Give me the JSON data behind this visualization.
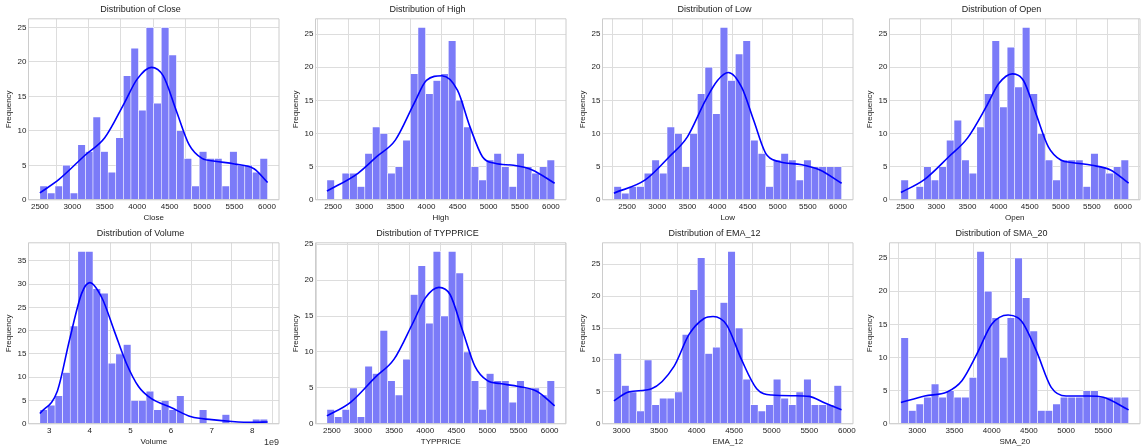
{
  "chart_data": [
    {
      "type": "histogram",
      "title": "Distribution of Close",
      "xlabel": "Close",
      "ylabel": "Frequency",
      "color": "#7b7bf8",
      "grid": true,
      "marker": "none",
      "bins": [
        2500,
        2617,
        2734,
        2851,
        2968,
        3085,
        3202,
        3319,
        3436,
        3553,
        3670,
        3787,
        3904,
        4021,
        4138,
        4255,
        4372,
        4489,
        4606,
        4723,
        4840,
        4957,
        5074,
        5191,
        5308,
        5425,
        5542,
        5659,
        5776,
        5893,
        6010
      ],
      "values": [
        2,
        1,
        2,
        5,
        1,
        8,
        7,
        12,
        7,
        4,
        9,
        18,
        22,
        13,
        25,
        14,
        25,
        21,
        10,
        6,
        2,
        7,
        6,
        6,
        2,
        7,
        5,
        5,
        4,
        6
      ],
      "series": [
        {
          "type": "line",
          "color": "#0000ff",
          "x": [
            2500,
            2800,
            3200,
            3500,
            3800,
            4000,
            4220,
            4400,
            4600,
            4800,
            5000,
            5200,
            5500,
            5800,
            6010
          ],
          "values": [
            1,
            3,
            6.5,
            9,
            14,
            17.5,
            19.2,
            18,
            13,
            8,
            6,
            5.6,
            5.2,
            4.5,
            2.5
          ]
        }
      ],
      "xlim": [
        2325,
        6186
      ],
      "ylim": [
        0,
        26.25
      ],
      "xticks": [
        2500,
        3000,
        3500,
        4000,
        4500,
        5000,
        5500,
        6000
      ],
      "yticks": [
        0,
        5,
        10,
        15,
        20,
        25
      ]
    },
    {
      "type": "histogram",
      "title": "Distribution of High",
      "xlabel": "High",
      "ylabel": "Frequency",
      "color": "#7b7bf8",
      "grid": true,
      "marker": "none",
      "bins": [
        2400,
        2522,
        2644,
        2766,
        2888,
        3010,
        3132,
        3254,
        3376,
        3498,
        3620,
        3742,
        3864,
        3986,
        4108,
        4230,
        4352,
        4474,
        4596,
        4718,
        4840,
        4962,
        5084,
        5206,
        5328,
        5450,
        5572,
        5694,
        5816,
        5938,
        6060
      ],
      "values": [
        3,
        0,
        4,
        4,
        2,
        7,
        11,
        10,
        4,
        5,
        9,
        19,
        26,
        16,
        18,
        19,
        24,
        15,
        11,
        5,
        3,
        6,
        7,
        5,
        2,
        7,
        5,
        4,
        5,
        6
      ],
      "series": [
        {
          "type": "line",
          "color": "#0000ff",
          "x": [
            2400,
            2900,
            3200,
            3500,
            3800,
            4000,
            4250,
            4500,
            4700,
            4900,
            5100,
            5400,
            5700,
            6060
          ],
          "values": [
            1.3,
            4,
            6.5,
            9,
            14.5,
            18,
            18.7,
            16.5,
            11,
            6.5,
            5.5,
            5.2,
            4.5,
            2.5
          ]
        }
      ],
      "xlim": [
        2217,
        6243
      ],
      "ylim": [
        0,
        27.3
      ],
      "xticks": [
        2500,
        3000,
        3500,
        4000,
        4500,
        5000,
        5500,
        6000
      ],
      "yticks": [
        0,
        5,
        10,
        15,
        20,
        25
      ]
    },
    {
      "type": "histogram",
      "title": "Distribution of Low",
      "xlabel": "Low",
      "ylabel": "Frequency",
      "color": "#7b7bf8",
      "grid": true,
      "marker": "none",
      "bins": [
        2280,
        2406,
        2532,
        2658,
        2784,
        2910,
        3036,
        3162,
        3288,
        3414,
        3540,
        3666,
        3792,
        3918,
        4044,
        4170,
        4296,
        4422,
        4548,
        4674,
        4800,
        4926,
        5052,
        5178,
        5304,
        5430,
        5556,
        5682,
        5808,
        5934,
        6060
      ],
      "values": [
        2,
        1,
        2,
        2,
        4,
        6,
        4,
        11,
        10,
        5,
        10,
        16,
        20,
        13,
        26,
        18,
        22,
        24,
        9,
        7,
        2,
        6,
        7,
        6,
        3,
        6,
        5,
        5,
        5,
        5
      ],
      "series": [
        {
          "type": "line",
          "color": "#0000ff",
          "x": [
            2280,
            2800,
            3200,
            3500,
            3800,
            4000,
            4180,
            4400,
            4600,
            4800,
            5000,
            5400,
            5700,
            6060
          ],
          "values": [
            1,
            3,
            6.5,
            9.5,
            15,
            18,
            19.2,
            17,
            12,
            7,
            5.8,
            5.3,
            4.5,
            2.5
          ]
        }
      ],
      "xlim": [
        2091,
        6249
      ],
      "ylim": [
        0,
        27.3
      ],
      "xticks": [
        2500,
        3000,
        3500,
        4000,
        4500,
        5000,
        5500,
        6000
      ],
      "yticks": [
        0,
        5,
        10,
        15,
        20,
        25
      ]
    },
    {
      "type": "histogram",
      "title": "Distribution of Open",
      "xlabel": "Open",
      "ylabel": "Frequency",
      "color": "#7b7bf8",
      "grid": true,
      "marker": "none",
      "bins": [
        2430,
        2552,
        2674,
        2796,
        2918,
        3040,
        3162,
        3284,
        3406,
        3528,
        3650,
        3772,
        3894,
        4016,
        4138,
        4260,
        4382,
        4504,
        4626,
        4748,
        4870,
        4992,
        5114,
        5236,
        5358,
        5480,
        5602,
        5724,
        5846,
        5968,
        6090
      ],
      "values": [
        3,
        0,
        2,
        5,
        3,
        5,
        9,
        12,
        6,
        4,
        11,
        16,
        24,
        14,
        23,
        17,
        26,
        16,
        10,
        6,
        3,
        6,
        6,
        6,
        2,
        7,
        5,
        4,
        5,
        6
      ],
      "series": [
        {
          "type": "line",
          "color": "#0000ff",
          "x": [
            2430,
            2800,
            3200,
            3500,
            3800,
            4000,
            4220,
            4400,
            4600,
            4800,
            5000,
            5200,
            5500,
            5800,
            6090
          ],
          "values": [
            1.1,
            3,
            6.5,
            9.3,
            14,
            17.5,
            19,
            18,
            13,
            8,
            6,
            5.6,
            5.2,
            4.5,
            2.5
          ]
        }
      ],
      "xlim": [
        2247,
        6273
      ],
      "ylim": [
        0,
        27.3
      ],
      "xticks": [
        2500,
        3000,
        3500,
        4000,
        4500,
        5000,
        5500,
        6000
      ],
      "yticks": [
        0,
        5,
        10,
        15,
        20,
        25
      ]
    },
    {
      "type": "histogram",
      "title": "Distribution of Volume",
      "xlabel": "Volume",
      "ylabel": "Frequency",
      "color": "#7b7bf8",
      "grid": true,
      "marker": "none",
      "annotations": [
        "1e9"
      ],
      "bins": [
        2.77,
        2.957,
        3.144,
        3.331,
        3.518,
        3.705,
        3.892,
        4.079,
        4.266,
        4.453,
        4.64,
        4.827,
        5.014,
        5.201,
        5.388,
        5.575,
        5.762,
        5.949,
        6.136,
        6.323,
        6.51,
        6.697,
        6.884,
        7.071,
        7.258,
        7.445,
        7.632,
        7.819,
        8.006,
        8.193,
        8.38
      ],
      "values": [
        3,
        4,
        6,
        11,
        21,
        37,
        37,
        29,
        28,
        13,
        15,
        17,
        5,
        5,
        7,
        3,
        5,
        3,
        6,
        0,
        0,
        3,
        0,
        0,
        2,
        0,
        0,
        0,
        1,
        1
      ],
      "series": [
        {
          "type": "line",
          "color": "#0000ff",
          "x": [
            2.77,
            3.2,
            3.5,
            3.8,
            4.0,
            4.3,
            4.6,
            4.9,
            5.2,
            5.5,
            6.0,
            6.5,
            7.0,
            7.5,
            8.0,
            8.38
          ],
          "values": [
            2.2,
            7,
            18,
            28,
            30.3,
            27,
            20,
            13,
            8,
            5.5,
            3.5,
            1.5,
            0.9,
            0.5,
            0.3,
            0.4
          ]
        }
      ],
      "xlim": [
        2.49,
        8.66
      ],
      "ylim": [
        0,
        38.85
      ],
      "xticks": [
        3,
        4,
        5,
        6,
        7,
        8
      ],
      "yticks": [
        0,
        5,
        10,
        15,
        20,
        25,
        30,
        35
      ]
    },
    {
      "type": "histogram",
      "title": "Distribution of TYPPRICE",
      "xlabel": "TYPPRICE",
      "ylabel": "Frequency",
      "color": "#7b7bf8",
      "grid": true,
      "marker": "none",
      "bins": [
        2420,
        2542,
        2664,
        2786,
        2908,
        3030,
        3152,
        3274,
        3396,
        3518,
        3640,
        3762,
        3884,
        4006,
        4128,
        4250,
        4372,
        4494,
        4616,
        4738,
        4860,
        4982,
        5104,
        5226,
        5348,
        5470,
        5592,
        5714,
        5836,
        5958,
        6080
      ],
      "values": [
        2,
        1,
        2,
        5,
        1,
        8,
        7,
        13,
        6,
        4,
        9,
        18,
        22,
        14,
        24,
        15,
        24,
        21,
        10,
        6,
        2,
        7,
        6,
        6,
        3,
        6,
        5,
        5,
        4,
        6
      ],
      "series": [
        {
          "type": "line",
          "color": "#0000ff",
          "x": [
            2420,
            2800,
            3200,
            3500,
            3800,
            4000,
            4220,
            4400,
            4600,
            4800,
            5000,
            5200,
            5500,
            5800,
            6080
          ],
          "values": [
            1.1,
            3,
            6.5,
            9,
            14,
            17.5,
            19,
            18,
            13,
            8,
            6,
            5.6,
            5.2,
            4.5,
            2.5
          ]
        }
      ],
      "xlim": [
        2237,
        6263
      ],
      "ylim": [
        0,
        25.2
      ],
      "xticks": [
        2500,
        3000,
        3500,
        4000,
        4500,
        5000,
        5500,
        6000
      ],
      "yticks": [
        0,
        5,
        10,
        15,
        20,
        25
      ]
    },
    {
      "type": "histogram",
      "title": "Distribution of EMA_12",
      "xlabel": "EMA_12",
      "ylabel": "Frequency",
      "color": "#7b7bf8",
      "grid": true,
      "marker": "none",
      "bins": [
        2900,
        3001,
        3102,
        3203,
        3304,
        3405,
        3506,
        3607,
        3708,
        3809,
        3910,
        4011,
        4112,
        4213,
        4314,
        4415,
        4516,
        4617,
        4718,
        4819,
        4920,
        5021,
        5122,
        5223,
        5324,
        5425,
        5526,
        5627,
        5728,
        5829,
        5930
      ],
      "values": [
        11,
        6,
        5,
        2,
        10,
        3,
        4,
        4,
        5,
        14,
        21,
        26,
        11,
        12,
        19,
        27,
        15,
        7,
        3,
        2,
        3,
        7,
        4,
        3,
        5,
        7,
        3,
        3,
        3,
        6
      ],
      "series": [
        {
          "type": "line",
          "color": "#0000ff",
          "x": [
            2900,
            3100,
            3400,
            3700,
            3900,
            4100,
            4220,
            4400,
            4600,
            4800,
            5000,
            5300,
            5500,
            5700,
            5930
          ],
          "values": [
            3.6,
            5,
            5.5,
            9,
            14,
            16.5,
            16.8,
            15.5,
            10,
            5.5,
            4.5,
            4.4,
            4.3,
            3.3,
            2.2
          ]
        }
      ],
      "xlim": [
        2748,
        6082
      ],
      "ylim": [
        0,
        28.35
      ],
      "xticks": [
        3000,
        3500,
        4000,
        4500,
        5000,
        5500,
        6000
      ],
      "yticks": [
        0,
        5,
        10,
        15,
        20,
        25
      ]
    },
    {
      "type": "histogram",
      "title": "Distribution of SMA_20",
      "xlabel": "SMA_20",
      "ylabel": "Frequency",
      "color": "#7b7bf8",
      "grid": true,
      "marker": "none",
      "bins": [
        2780,
        2882,
        2984,
        3086,
        3188,
        3290,
        3392,
        3494,
        3596,
        3698,
        3800,
        3902,
        4004,
        4106,
        4208,
        4310,
        4412,
        4514,
        4616,
        4718,
        4820,
        4922,
        5024,
        5126,
        5228,
        5330,
        5432,
        5534,
        5636,
        5738,
        5840
      ],
      "values": [
        13,
        2,
        3,
        4,
        6,
        4,
        5,
        4,
        4,
        7,
        26,
        20,
        16,
        10,
        16,
        25,
        19,
        14,
        2,
        2,
        3,
        4,
        4,
        4,
        5,
        5,
        4,
        4,
        4,
        4
      ],
      "series": [
        {
          "type": "line",
          "color": "#0000ff",
          "x": [
            2780,
            3100,
            3400,
            3600,
            3800,
            4000,
            4220,
            4400,
            4600,
            4800,
            5000,
            5300,
            5500,
            5840
          ],
          "values": [
            3.2,
            4.2,
            4.8,
            6.5,
            10.5,
            15,
            16.4,
            15.5,
            11,
            5.5,
            4.2,
            4.2,
            4,
            2.1
          ]
        }
      ],
      "xlim": [
        2627,
        5993
      ],
      "ylim": [
        0,
        27.3
      ],
      "xticks": [
        3000,
        3500,
        4000,
        4500,
        5000,
        5500
      ],
      "yticks": [
        0,
        5,
        10,
        15,
        20,
        25
      ]
    }
  ]
}
